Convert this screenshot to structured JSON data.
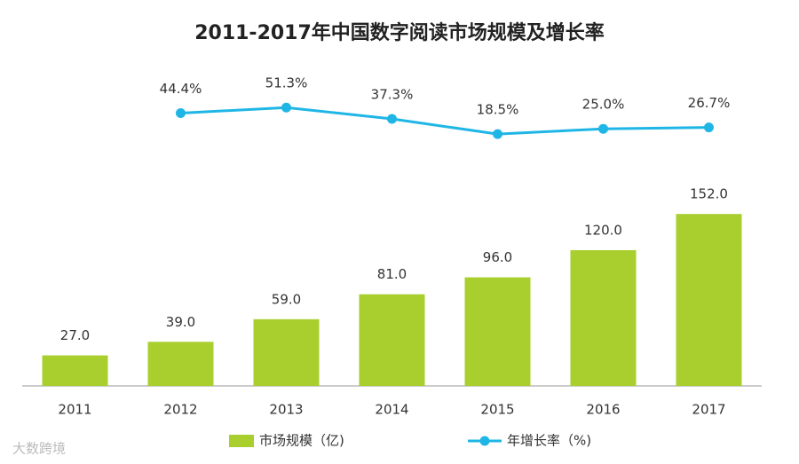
{
  "chart_data": {
    "type": "bar",
    "title": "2011-2017年中国数字阅读市场规模及增长率",
    "categories": [
      "2011",
      "2012",
      "2013",
      "2014",
      "2015",
      "2016",
      "2017"
    ],
    "series": [
      {
        "name": "市场规模（亿)",
        "type": "bar",
        "color": "#a8cf2e",
        "values": [
          27.0,
          39.0,
          59.0,
          81.0,
          96.0,
          120.0,
          152.0
        ],
        "value_labels": [
          "27.0",
          "39.0",
          "59.0",
          "81.0",
          "96.0",
          "120.0",
          "152.0"
        ]
      },
      {
        "name": "年增长率（%)",
        "type": "line",
        "axis": "y2",
        "color": "#1fb6e6",
        "values": [
          null,
          44.4,
          51.3,
          37.3,
          18.5,
          25.0,
          26.7
        ],
        "value_labels": [
          null,
          "44.4%",
          "51.3%",
          "37.3%",
          "18.5%",
          "25.0%",
          "26.7%"
        ]
      }
    ],
    "ylim": [
      0,
      200
    ],
    "y2lim": [
      0,
      125
    ],
    "watermark": "大数跨境"
  }
}
